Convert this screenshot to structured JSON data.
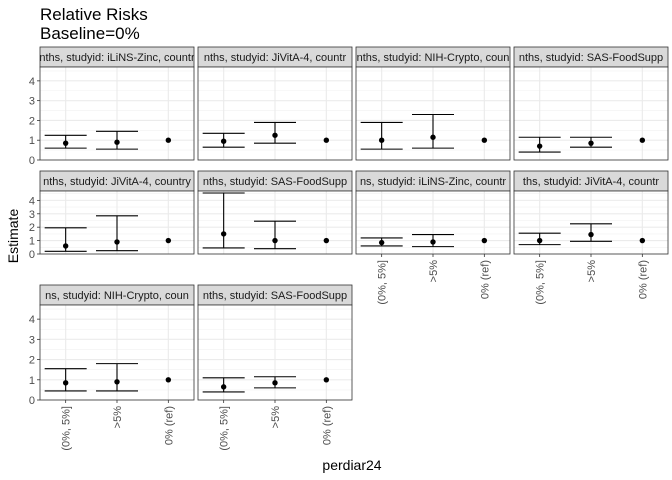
{
  "chart_data": {
    "type": "errorbar",
    "title": "Relative Risks",
    "subtitle": "Baseline=0%",
    "xlabel": "perdiar24",
    "ylabel": "Estimate",
    "categories": [
      "(0%, 5%]",
      ">5%",
      "0% (ref)"
    ],
    "yticks": [
      0,
      1,
      2,
      3,
      4
    ],
    "ylim": [
      0,
      4.7
    ],
    "grid": true,
    "panels": [
      {
        "strip": "nths, studyid: iLiNS-Zinc, countr",
        "estimate": [
          0.85,
          0.9,
          1.0
        ],
        "lower": [
          0.6,
          0.55,
          null
        ],
        "upper": [
          1.25,
          1.45,
          null
        ]
      },
      {
        "strip": "nths, studyid: JiVitA-4, countr",
        "estimate": [
          0.95,
          1.25,
          1.0
        ],
        "lower": [
          0.65,
          0.85,
          null
        ],
        "upper": [
          1.35,
          1.9,
          null
        ]
      },
      {
        "strip": "nths, studyid: NIH-Crypto, coun",
        "estimate": [
          1.0,
          1.15,
          1.0
        ],
        "lower": [
          0.55,
          0.6,
          null
        ],
        "upper": [
          1.9,
          2.3,
          null
        ]
      },
      {
        "strip": "nths, studyid: SAS-FoodSupp",
        "estimate": [
          0.7,
          0.85,
          1.0
        ],
        "lower": [
          0.4,
          0.65,
          null
        ],
        "upper": [
          1.15,
          1.15,
          null
        ]
      },
      {
        "strip": "nths, studyid: JiVitA-4, country",
        "estimate": [
          0.6,
          0.9,
          1.0
        ],
        "lower": [
          0.2,
          0.25,
          null
        ],
        "upper": [
          1.95,
          2.85,
          null
        ]
      },
      {
        "strip": "nths, studyid: SAS-FoodSupp",
        "estimate": [
          1.5,
          1.0,
          1.0
        ],
        "lower": [
          0.45,
          0.4,
          null
        ],
        "upper": [
          4.55,
          2.45,
          null
        ]
      },
      {
        "strip": "ns, studyid: iLiNS-Zinc, countr",
        "estimate": [
          0.85,
          0.9,
          1.0
        ],
        "lower": [
          0.6,
          0.55,
          null
        ],
        "upper": [
          1.2,
          1.45,
          null
        ]
      },
      {
        "strip": "ths, studyid: JiVitA-4, countr",
        "estimate": [
          1.0,
          1.45,
          1.0
        ],
        "lower": [
          0.7,
          0.95,
          null
        ],
        "upper": [
          1.55,
          2.25,
          null
        ]
      },
      {
        "strip": "ns, studyid: NIH-Crypto, coun",
        "estimate": [
          0.85,
          0.9,
          1.0
        ],
        "lower": [
          0.45,
          0.45,
          null
        ],
        "upper": [
          1.55,
          1.8,
          null
        ]
      },
      {
        "strip": "nths, studyid: SAS-FoodSupp",
        "estimate": [
          0.65,
          0.85,
          1.0
        ],
        "lower": [
          0.4,
          0.6,
          null
        ],
        "upper": [
          1.1,
          1.15,
          null
        ]
      }
    ]
  }
}
